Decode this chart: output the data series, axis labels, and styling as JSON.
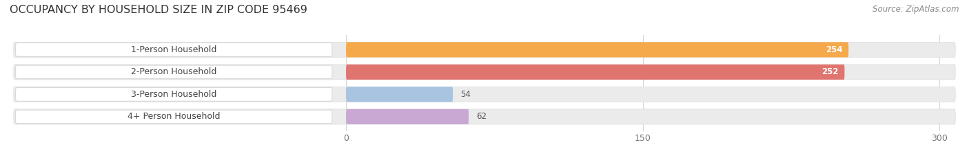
{
  "title": "OCCUPANCY BY HOUSEHOLD SIZE IN ZIP CODE 95469",
  "source": "Source: ZipAtlas.com",
  "categories": [
    "1-Person Household",
    "2-Person Household",
    "3-Person Household",
    "4+ Person Household"
  ],
  "values": [
    254,
    252,
    54,
    62
  ],
  "bar_colors": [
    "#F5A94A",
    "#E07570",
    "#A8C4E0",
    "#C9A8D4"
  ],
  "bar_label_colors": [
    "white",
    "white",
    "#555555",
    "#555555"
  ],
  "data_max": 300,
  "xticks": [
    0,
    150,
    300
  ],
  "background_color": "#ffffff",
  "bar_bg_color": "#ebebeb",
  "bar_border_color": "#dddddd",
  "label_bg_color": "#ffffff",
  "title_fontsize": 11.5,
  "source_fontsize": 8.5,
  "label_fontsize": 9,
  "value_fontsize": 8.5,
  "figsize": [
    14.06,
    2.33
  ],
  "dpi": 100
}
